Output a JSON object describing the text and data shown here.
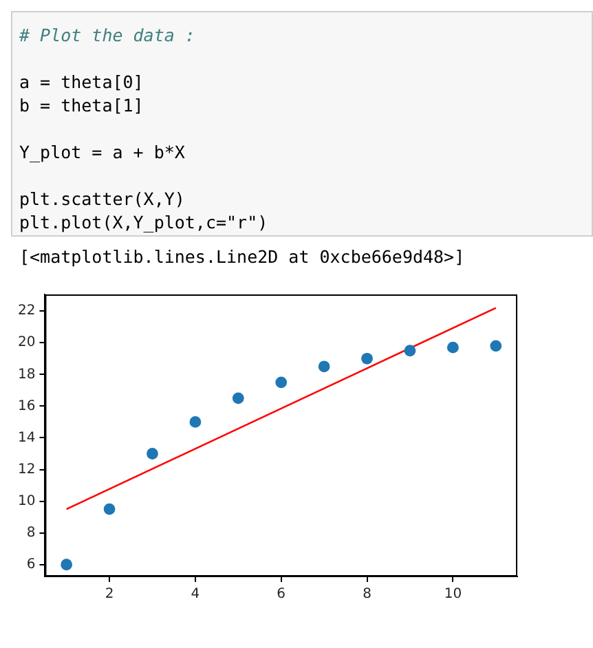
{
  "chart_data": {
    "type": "scatter",
    "annotations": [
      "# Plot the data :",
      "a = theta[0]",
      "b = theta[1]",
      "Y_plot = a + b*X",
      "plt.scatter(X,Y)",
      "plt.plot(X,Y_plot,c=\"r\")",
      "[<matplotlib.lines.Line2D at 0xcbe66e9d48>]"
    ],
    "series": [
      {
        "marker": "circle",
        "color": "#1f77b4",
        "x": [
          1,
          2,
          3,
          4,
          5,
          6,
          7,
          8,
          9,
          10,
          11
        ],
        "values": [
          6,
          9.5,
          13,
          15,
          16.5,
          17.5,
          18.5,
          19,
          19.5,
          19.7,
          19.8
        ]
      },
      {
        "type": "line",
        "marker": "none",
        "color": "#ff0000",
        "x": [
          1,
          11
        ],
        "values": [
          9.5,
          22.2
        ]
      }
    ],
    "grid": false,
    "legend": false,
    "xlim": [
      0.5,
      11.5
    ],
    "ylim": [
      5.25,
      23.05
    ],
    "xticks": [
      2,
      4,
      6,
      8,
      10
    ],
    "yticks": [
      6,
      8,
      10,
      12,
      14,
      16,
      18,
      20,
      22
    ]
  }
}
